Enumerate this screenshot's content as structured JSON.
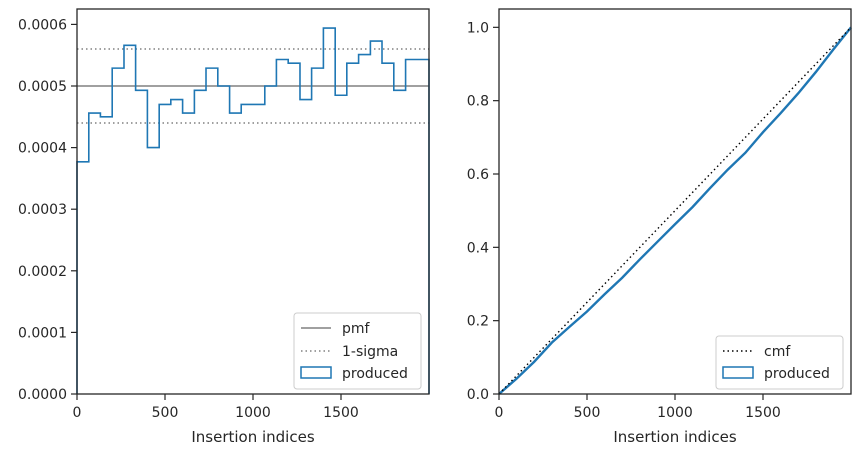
{
  "chart_data": [
    {
      "type": "histogram-step",
      "xlabel": "Insertion indices",
      "ylabel": "",
      "xlim": [
        0,
        2000
      ],
      "ylim": [
        0,
        0.000625
      ],
      "x_ticks": [
        0,
        500,
        1000,
        1500
      ],
      "x_tick_labels": [
        "0",
        "500",
        "1000",
        "1500"
      ],
      "y_ticks": [
        0,
        0.0001,
        0.0002,
        0.0003,
        0.0004,
        0.0005,
        0.0006
      ],
      "y_tick_labels": [
        "0.0000",
        "0.0001",
        "0.0002",
        "0.0003",
        "0.0004",
        "0.0005",
        "0.0006"
      ],
      "bin_edges": [
        0,
        67,
        133,
        200,
        267,
        333,
        400,
        467,
        533,
        600,
        667,
        733,
        800,
        867,
        933,
        1000,
        1067,
        1133,
        1200,
        1267,
        1333,
        1400,
        1467,
        1533,
        1600,
        1667,
        1733,
        1800,
        1867,
        1933,
        2000
      ],
      "series": [
        {
          "name": "produced",
          "color": "#1f77b4",
          "values": [
            0.000377,
            0.000456,
            0.00045,
            0.000529,
            0.000566,
            0.000493,
            0.0004,
            0.00047,
            0.000478,
            0.000456,
            0.000493,
            0.000529,
            0.0005,
            0.000456,
            0.00047,
            0.00047,
            0.0005,
            0.000543,
            0.000537,
            0.000478,
            0.000529,
            0.000594,
            0.000485,
            0.000537,
            0.000551,
            0.000573,
            0.000537,
            0.000493,
            0.000543,
            0.000543
          ]
        }
      ],
      "reference_lines": [
        {
          "name": "pmf",
          "y": 0.0005,
          "color": "#808080",
          "style": "solid"
        },
        {
          "name": "1-sigma",
          "y": [
            0.00044,
            0.00056
          ],
          "color": "#808080",
          "style": "dotted"
        }
      ],
      "legend": {
        "placement": "lower-right",
        "entries": [
          "pmf",
          "1-sigma",
          "produced"
        ]
      }
    },
    {
      "type": "line",
      "xlabel": "Insertion indices",
      "ylabel": "",
      "xlim": [
        0,
        2000
      ],
      "ylim": [
        0,
        1.05
      ],
      "x_ticks": [
        0,
        500,
        1000,
        1500
      ],
      "x_tick_labels": [
        "0",
        "500",
        "1000",
        "1500"
      ],
      "y_ticks": [
        0,
        0.2,
        0.4,
        0.6,
        0.8,
        1.0
      ],
      "y_tick_labels": [
        "0.0",
        "0.2",
        "0.4",
        "0.6",
        "0.8",
        "1.0"
      ],
      "series": [
        {
          "name": "cmf",
          "color": "#000000",
          "style": "dotted",
          "x": [
            0,
            2000
          ],
          "y": [
            0,
            1.0
          ]
        },
        {
          "name": "produced",
          "color": "#1f77b4",
          "style": "solid",
          "x": [
            0,
            100,
            200,
            300,
            400,
            500,
            600,
            700,
            800,
            900,
            1000,
            1100,
            1200,
            1300,
            1400,
            1500,
            1600,
            1700,
            1800,
            1900,
            2000
          ],
          "y": [
            0,
            0.042,
            0.088,
            0.14,
            0.183,
            0.225,
            0.272,
            0.317,
            0.367,
            0.415,
            0.463,
            0.51,
            0.562,
            0.612,
            0.658,
            0.714,
            0.766,
            0.82,
            0.878,
            0.94,
            1.0
          ]
        }
      ],
      "legend": {
        "placement": "lower-right",
        "entries": [
          "cmf",
          "produced"
        ]
      }
    }
  ]
}
